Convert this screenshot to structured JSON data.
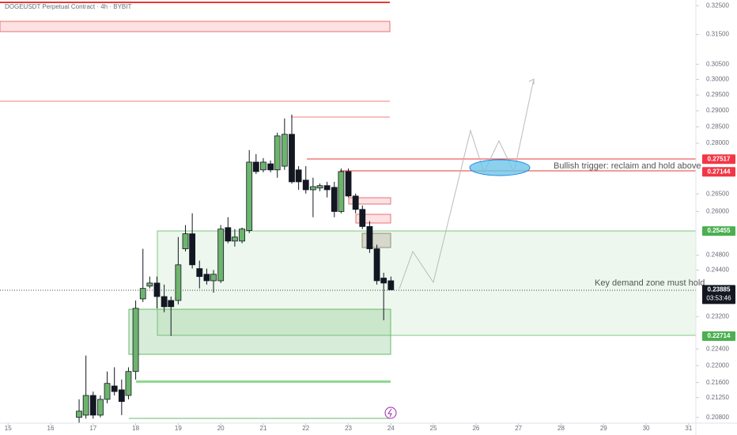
{
  "chart_data": {
    "type": "candlestick",
    "title": "DOGEUSDT Perpetual Contract · 4h · BYBIT",
    "log_scale": true,
    "up_color": "#6db46d",
    "down_color": "#131722",
    "x": [
      16.67,
      16.83,
      17,
      17.17,
      17.33,
      17.5,
      17.67,
      17.83,
      18,
      18.17,
      18.33,
      18.5,
      18.67,
      18.83,
      19,
      19.17,
      19.33,
      19.5,
      19.67,
      19.83,
      20,
      20.17,
      20.33,
      20.5,
      20.67,
      20.83,
      21,
      21.17,
      21.33,
      21.5,
      21.67,
      21.83,
      22,
      22.17,
      22.33,
      22.5,
      22.67,
      22.83,
      23,
      23.17,
      23.33,
      23.5,
      23.67,
      23.83,
      24
    ],
    "open": [
      0.208,
      0.2085,
      0.213,
      0.2085,
      0.2121,
      0.2152,
      0.2143,
      0.213,
      0.2186,
      0.2365,
      0.2398,
      0.2406,
      0.2371,
      0.2361,
      0.2361,
      0.2497,
      0.2538,
      0.2444,
      0.2429,
      0.2412,
      0.2412,
      0.2555,
      0.2518,
      0.2518,
      0.2547,
      0.2743,
      0.272,
      0.2738,
      0.272,
      0.2731,
      0.2827,
      0.272,
      0.269,
      0.2662,
      0.2667,
      0.2674,
      0.2669,
      0.26,
      0.2715,
      0.2644,
      0.2606,
      0.2558,
      0.2497,
      0.2419,
      0.2412
    ],
    "high": [
      0.2121,
      0.2224,
      0.2139,
      0.213,
      0.2186,
      0.2196,
      0.2167,
      0.2196,
      0.2361,
      0.2497,
      0.2423,
      0.2423,
      0.2402,
      0.2371,
      0.2529,
      0.2562,
      0.2595,
      0.2465,
      0.2444,
      0.244,
      0.2562,
      0.2584,
      0.2551,
      0.2555,
      0.2779,
      0.2767,
      0.2755,
      0.2748,
      0.2832,
      0.2876,
      0.2888,
      0.2731,
      0.2731,
      0.2697,
      0.268,
      0.2685,
      0.2685,
      0.2724,
      0.2724,
      0.2651,
      0.2617,
      0.2573,
      0.2508,
      0.2433,
      0.2423
    ],
    "low": [
      0.2068,
      0.2077,
      0.2077,
      0.208,
      0.2112,
      0.213,
      0.2085,
      0.2121,
      0.2167,
      0.2357,
      0.2392,
      0.2341,
      0.2331,
      0.2272,
      0.2351,
      0.249,
      0.2444,
      0.2392,
      0.2402,
      0.2381,
      0.2406,
      0.2512,
      0.2503,
      0.2512,
      0.254,
      0.2708,
      0.2713,
      0.2713,
      0.2697,
      0.272,
      0.268,
      0.2662,
      0.2651,
      0.2584,
      0.2658,
      0.264,
      0.2584,
      0.2595,
      0.264,
      0.2595,
      0.2551,
      0.2486,
      0.2402,
      0.2311,
      0.2388
    ],
    "close": [
      0.2094,
      0.213,
      0.2085,
      0.2121,
      0.2158,
      0.2139,
      0.2116,
      0.2186,
      0.2341,
      0.2392,
      0.2406,
      0.2371,
      0.2345,
      0.2345,
      0.2454,
      0.2538,
      0.2454,
      0.2423,
      0.2412,
      0.2429,
      0.2551,
      0.2518,
      0.2529,
      0.2551,
      0.2743,
      0.2715,
      0.2743,
      0.272,
      0.2822,
      0.2827,
      0.2685,
      0.2685,
      0.2662,
      0.2671,
      0.2674,
      0.2662,
      0.26,
      0.2715,
      0.2644,
      0.2606,
      0.2558,
      0.2497,
      0.2412,
      0.2406,
      0.23885
    ],
    "xlim": [
      14.81,
      31.17
    ],
    "xticks": [
      15,
      16,
      17,
      18,
      19,
      20,
      21,
      22,
      23,
      24,
      25,
      26,
      27,
      28,
      29,
      30,
      31
    ],
    "ylim": [
      0.2067,
      0.327
    ],
    "yticks": [
      {
        "value": 0.325,
        "label": "0.32500"
      },
      {
        "value": 0.315,
        "label": "0.31500"
      },
      {
        "value": 0.305,
        "label": "0.30500"
      },
      {
        "value": 0.3,
        "label": "0.30000"
      },
      {
        "value": 0.295,
        "label": "0.29500"
      },
      {
        "value": 0.29,
        "label": "0.29000"
      },
      {
        "value": 0.285,
        "label": "0.28500"
      },
      {
        "value": 0.28,
        "label": "0.28000"
      },
      {
        "value": 0.265,
        "label": "0.26500"
      },
      {
        "value": 0.26,
        "label": "0.26000"
      },
      {
        "value": 0.248,
        "label": "0.24800"
      },
      {
        "value": 0.244,
        "label": "0.24400"
      },
      {
        "value": 0.232,
        "label": "0.23200"
      },
      {
        "value": 0.224,
        "label": "0.22400"
      },
      {
        "value": 0.22,
        "label": "0.22000"
      },
      {
        "value": 0.216,
        "label": "0.21600"
      },
      {
        "value": 0.2125,
        "label": "0.21250"
      },
      {
        "value": 0.208,
        "label": "0.20800"
      }
    ],
    "price_labels": [
      {
        "value": 0.27517,
        "label": "0.27517",
        "color": "#f23645"
      },
      {
        "value": 0.27144,
        "label": "0.27144",
        "color": "#f23645"
      },
      {
        "value": 0.25455,
        "label": "0.25455",
        "color": "#4caf50"
      },
      {
        "value": 0.23885,
        "label": "0.23885",
        "color": "#131722"
      },
      {
        "value": 0.22714,
        "label": "0.22714",
        "color": "#4caf50"
      }
    ],
    "countdown": "03:53:46",
    "annotations": [
      "Bullish trigger: reclaim and hold above",
      "Key demand zone must hold"
    ]
  }
}
